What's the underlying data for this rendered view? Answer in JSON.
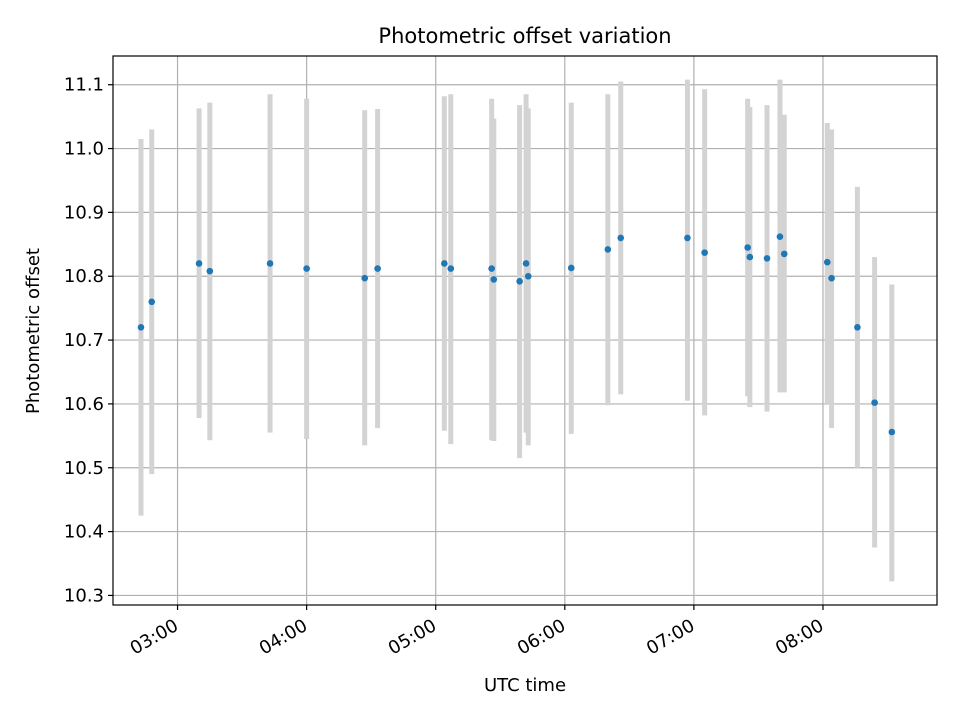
{
  "chart_data": {
    "type": "scatter",
    "title": "Photometric offset variation",
    "xlabel": "UTC time",
    "ylabel": "Photometric offset",
    "x_unit": "hours UTC",
    "xlim": [
      "02:30",
      "08:53"
    ],
    "ylim": [
      10.285,
      11.145
    ],
    "x_ticks": [
      "03:00",
      "04:00",
      "05:00",
      "06:00",
      "07:00",
      "08:00"
    ],
    "y_ticks": [
      "10.3",
      "10.4",
      "10.5",
      "10.6",
      "10.7",
      "10.8",
      "10.9",
      "11.0",
      "11.1"
    ],
    "grid": true,
    "legend": "none",
    "point_color": "#1f77b4",
    "errorbar_color": "#d3d3d3",
    "series": [
      {
        "points": [
          {
            "x": "02:43",
            "y": 10.72
          },
          {
            "x": "02:48",
            "y": 10.76
          },
          {
            "x": "03:10",
            "y": 10.82
          },
          {
            "x": "03:15",
            "y": 10.808
          },
          {
            "x": "03:43",
            "y": 10.82
          },
          {
            "x": "04:00",
            "y": 10.812
          },
          {
            "x": "04:27",
            "y": 10.797
          },
          {
            "x": "04:33",
            "y": 10.812
          },
          {
            "x": "05:04",
            "y": 10.82
          },
          {
            "x": "05:07",
            "y": 10.812
          },
          {
            "x": "05:26",
            "y": 10.812
          },
          {
            "x": "05:27",
            "y": 10.795
          },
          {
            "x": "05:39",
            "y": 10.792
          },
          {
            "x": "05:42",
            "y": 10.82
          },
          {
            "x": "05:43",
            "y": 10.8
          },
          {
            "x": "06:03",
            "y": 10.813
          },
          {
            "x": "06:20",
            "y": 10.842
          },
          {
            "x": "06:26",
            "y": 10.86
          },
          {
            "x": "06:57",
            "y": 10.86
          },
          {
            "x": "07:05",
            "y": 10.837
          },
          {
            "x": "07:25",
            "y": 10.845
          },
          {
            "x": "07:26",
            "y": 10.83
          },
          {
            "x": "07:34",
            "y": 10.828
          },
          {
            "x": "07:40",
            "y": 10.862
          },
          {
            "x": "07:42",
            "y": 10.835
          },
          {
            "x": "08:02",
            "y": 10.822
          },
          {
            "x": "08:04",
            "y": 10.797
          },
          {
            "x": "08:16",
            "y": 10.72
          },
          {
            "x": "08:24",
            "y": 10.602
          },
          {
            "x": "08:32",
            "y": 10.556
          }
        ],
        "error_ranges": [
          [
            10.425,
            11.015
          ],
          [
            10.49,
            11.03
          ],
          [
            10.578,
            11.063
          ],
          [
            10.543,
            11.072
          ],
          [
            10.555,
            11.085
          ],
          [
            10.545,
            11.078
          ],
          [
            10.535,
            11.06
          ],
          [
            10.562,
            11.062
          ],
          [
            10.558,
            11.082
          ],
          [
            10.537,
            11.085
          ],
          [
            10.543,
            11.078
          ],
          [
            10.542,
            11.047
          ],
          [
            10.515,
            11.068
          ],
          [
            10.555,
            11.085
          ],
          [
            10.535,
            11.063
          ],
          [
            10.553,
            11.072
          ],
          [
            10.598,
            11.085
          ],
          [
            10.615,
            11.105
          ],
          [
            10.605,
            11.108
          ],
          [
            10.582,
            11.093
          ],
          [
            10.612,
            11.078
          ],
          [
            10.595,
            11.065
          ],
          [
            10.588,
            11.068
          ],
          [
            10.618,
            11.108
          ],
          [
            10.618,
            11.053
          ],
          [
            10.6,
            11.04
          ],
          [
            10.562,
            11.03
          ],
          [
            10.5,
            10.94
          ],
          [
            10.375,
            10.83
          ],
          [
            10.322,
            10.787
          ]
        ]
      }
    ]
  }
}
